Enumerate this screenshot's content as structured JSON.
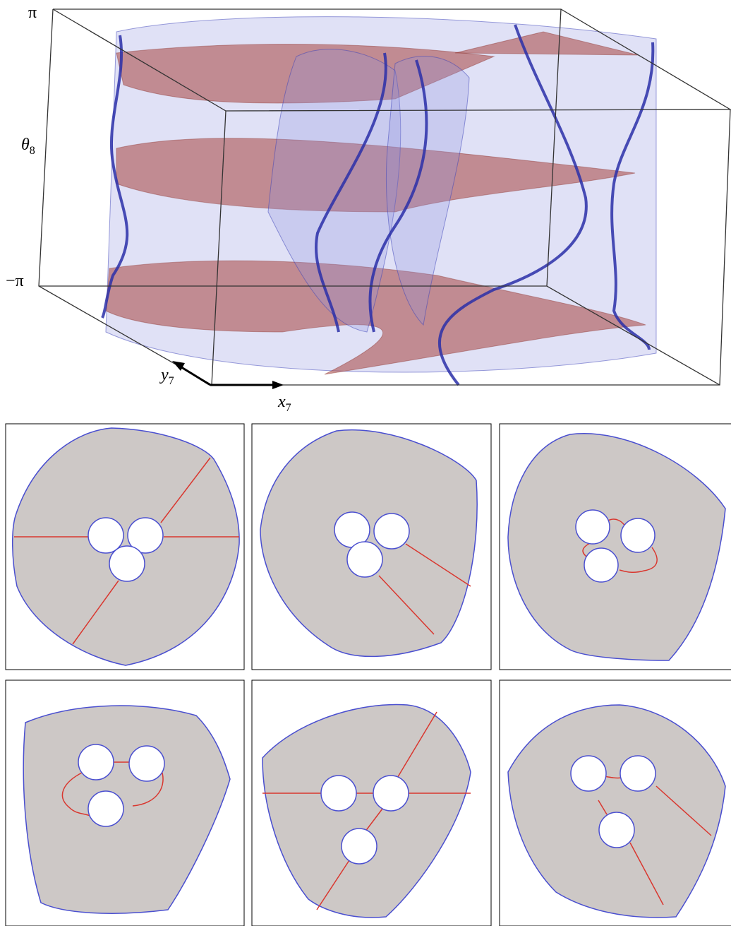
{
  "figure": {
    "labels": {
      "top": "π",
      "middle": {
        "symbol": "θ",
        "subscript": "8"
      },
      "bottom": "−π",
      "y_axis": {
        "symbol": "y",
        "subscript": "7"
      },
      "x_axis": {
        "symbol": "x",
        "subscript": "7"
      }
    }
  }
}
